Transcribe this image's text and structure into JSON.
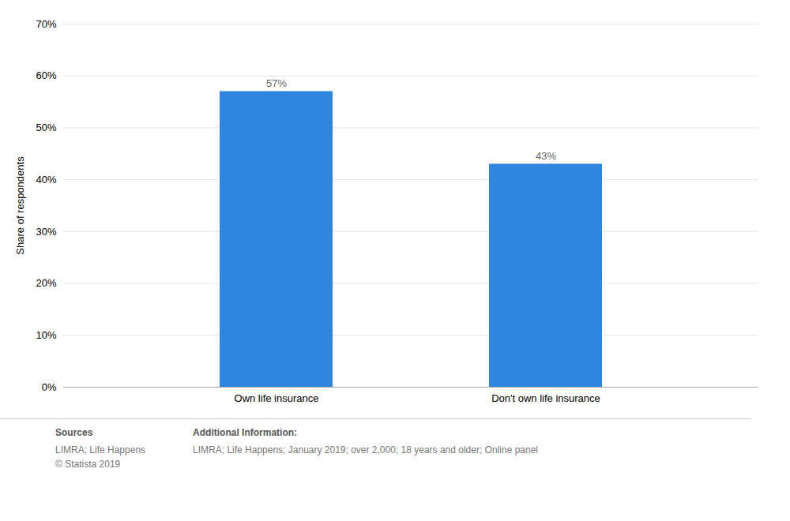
{
  "chart_data": {
    "type": "bar",
    "categories": [
      "Own life insurance",
      "Don't own life insurance"
    ],
    "values": [
      57,
      43
    ],
    "value_labels": [
      "57%",
      "43%"
    ],
    "data_labels": true,
    "color": "#2E86DE",
    "ylabel": "Share of respondents",
    "ylim": [
      0,
      70
    ],
    "yticks": [
      {
        "value": 0,
        "label": "0%"
      },
      {
        "value": 10,
        "label": "10%"
      },
      {
        "value": 20,
        "label": "20%"
      },
      {
        "value": 30,
        "label": "30%"
      },
      {
        "value": 40,
        "label": "40%"
      },
      {
        "value": 50,
        "label": "50%"
      },
      {
        "value": 60,
        "label": "60%"
      },
      {
        "value": 70,
        "label": "70%"
      }
    ],
    "grid": true,
    "annotations": [
      {
        "title": "Sources",
        "text": "LIMRA; Life Happens\n© Statista 2019"
      },
      {
        "title": "Additional Information:",
        "text": "LIMRA; Life Happens; January 2019; over 2,000; 18 years and older; Online panel"
      }
    ]
  }
}
